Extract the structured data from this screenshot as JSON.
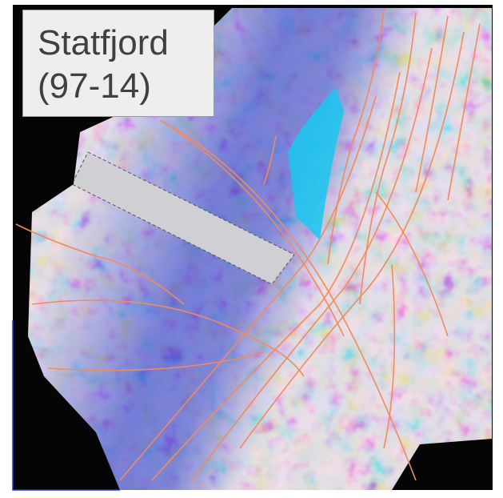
{
  "label": {
    "lines": [
      "Statfjord",
      "(97-14)"
    ]
  }
}
